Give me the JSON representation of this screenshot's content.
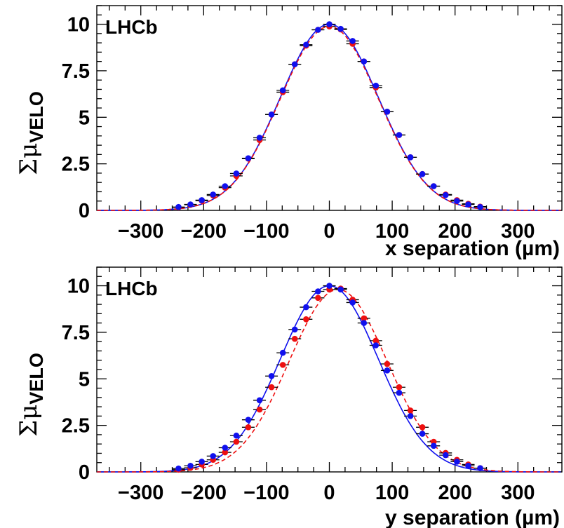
{
  "chart_data": [
    {
      "type": "scatter",
      "experiment_label": "LHCb",
      "xlabel": "x separation (µm)",
      "ylabel": {
        "symbol": "Σμ",
        "subscript": "VELO"
      },
      "xlim": [
        -370,
        370
      ],
      "ylim": [
        0,
        11
      ],
      "x_ticks": [
        -300,
        -200,
        -100,
        0,
        100,
        200,
        300
      ],
      "y_ticks": [
        "0",
        "2.5",
        "5",
        "7.5",
        "10"
      ],
      "y_tick_values": [
        0,
        2.5,
        5,
        7.5,
        10
      ],
      "fit_sigma": 78,
      "colors": {
        "series_a": "#1010ee",
        "series_b": "#ee1010"
      },
      "series": [
        {
          "color": "#1010ee",
          "line": "solid",
          "fit_amplitude": 10.0,
          "fit_mean": 0,
          "x": [
            -240,
            -221,
            -203,
            -185,
            -166,
            -148,
            -129,
            -111,
            -92,
            -74,
            -55,
            -37,
            -18,
            0,
            18,
            37,
            55,
            74,
            92,
            111,
            129,
            148,
            166,
            185,
            203,
            221,
            240
          ],
          "y": [
            0.18,
            0.32,
            0.55,
            0.85,
            1.3,
            1.98,
            2.8,
            3.9,
            5.15,
            6.45,
            7.85,
            8.9,
            9.7,
            10.0,
            9.75,
            9.1,
            8.0,
            6.7,
            5.3,
            4.05,
            2.85,
            1.95,
            1.3,
            0.82,
            0.5,
            0.32,
            0.18
          ]
        },
        {
          "color": "#ee1010",
          "line": "dashed",
          "fit_amplitude": 9.88,
          "fit_mean": 0,
          "x": [
            -240,
            -221,
            -203,
            -185,
            -166,
            -148,
            -129,
            -111,
            -92,
            -74,
            -55,
            -37,
            -18,
            0,
            18,
            37,
            55,
            74,
            92,
            111,
            129,
            148,
            166,
            185,
            203,
            221,
            240
          ],
          "y": [
            0.16,
            0.3,
            0.52,
            0.8,
            1.22,
            1.85,
            2.78,
            3.78,
            5.15,
            6.35,
            7.85,
            8.85,
            9.7,
            9.88,
            9.72,
            8.95,
            8.0,
            6.6,
            5.3,
            4.05,
            2.85,
            1.95,
            1.3,
            0.85,
            0.55,
            0.35,
            0.2
          ]
        }
      ]
    },
    {
      "type": "scatter",
      "experiment_label": "LHCb",
      "xlabel": "y separation (µm)",
      "ylabel": {
        "symbol": "Σμ",
        "subscript": "VELO"
      },
      "xlim": [
        -370,
        370
      ],
      "ylim": [
        0,
        11
      ],
      "x_ticks": [
        -300,
        -200,
        -100,
        0,
        100,
        200,
        300
      ],
      "y_ticks": [
        "0",
        "2.5",
        "5",
        "7.5",
        "10"
      ],
      "y_tick_values": [
        0,
        2.5,
        5,
        7.5,
        10
      ],
      "fit_sigma": 78,
      "colors": {
        "series_a": "#1010ee",
        "series_b": "#ee1010"
      },
      "series": [
        {
          "color": "#1010ee",
          "line": "solid",
          "fit_amplitude": 10.0,
          "fit_mean": 0,
          "x": [
            -240,
            -221,
            -203,
            -185,
            -166,
            -148,
            -129,
            -111,
            -92,
            -74,
            -55,
            -37,
            -18,
            0,
            18,
            37,
            55,
            74,
            92,
            111,
            129,
            148,
            166,
            185,
            203,
            221,
            240
          ],
          "y": [
            0.18,
            0.33,
            0.55,
            0.85,
            1.3,
            1.95,
            2.8,
            3.85,
            5.15,
            6.4,
            7.65,
            8.85,
            9.7,
            10.0,
            9.8,
            9.1,
            8.0,
            6.8,
            5.45,
            4.25,
            3.0,
            2.05,
            1.4,
            0.9,
            0.55,
            0.33,
            0.2
          ]
        },
        {
          "color": "#ee1010",
          "line": "dashed",
          "fit_amplitude": 9.8,
          "fit_mean": 14,
          "x": [
            -240,
            -221,
            -203,
            -185,
            -166,
            -148,
            -129,
            -111,
            -92,
            -74,
            -55,
            -37,
            -18,
            0,
            18,
            37,
            55,
            74,
            92,
            111,
            129,
            148,
            166,
            185,
            203,
            221,
            240
          ],
          "y": [
            0.12,
            0.22,
            0.4,
            0.65,
            1.05,
            1.62,
            2.4,
            3.35,
            4.55,
            5.75,
            7.15,
            8.2,
            9.35,
            9.8,
            9.85,
            9.25,
            8.25,
            7.05,
            5.8,
            4.55,
            3.3,
            2.4,
            1.62,
            1.02,
            0.65,
            0.4,
            0.2
          ]
        }
      ]
    }
  ]
}
